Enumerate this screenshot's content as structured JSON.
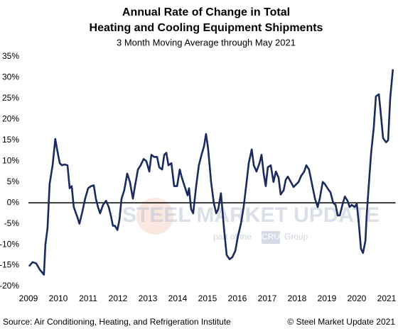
{
  "chart_data": {
    "type": "line",
    "title": [
      "Annual Rate of Change in Total",
      "Heating and Cooling Equipment Shipments"
    ],
    "subtitle": "3 Month Moving Average through May 2021",
    "source": "Source: Air Conditioning, Heating, and Refrigeration Institute",
    "copyright": "© Steel Market Update 2021",
    "watermark": [
      "STEEL MARKET UPDATE",
      "part of the",
      "CRU",
      "Group"
    ],
    "xlim": [
      2009,
      2021.3
    ],
    "xticks": [
      2009,
      2010,
      2011,
      2012,
      2013,
      2014,
      2015,
      2016,
      2017,
      2018,
      2019,
      2020,
      2021
    ],
    "ylim": [
      -20,
      35
    ],
    "yticks": [
      {
        "value": -20,
        "label": "-20%"
      },
      {
        "value": -15,
        "label": "-15%"
      },
      {
        "value": -10,
        "label": "-10%"
      },
      {
        "value": -5,
        "label": "-5%"
      },
      {
        "value": 0,
        "label": "0%"
      },
      {
        "value": 5,
        "label": "5%"
      },
      {
        "value": 10,
        "label": "10%"
      },
      {
        "value": 15,
        "label": "15%"
      },
      {
        "value": 20,
        "label": "20%"
      },
      {
        "value": 25,
        "label": "25%"
      },
      {
        "value": 30,
        "label": "30%"
      },
      {
        "value": 35,
        "label": "35%"
      }
    ],
    "grid": false,
    "zero_line": true,
    "series": [
      {
        "name": "3 Month Moving Average",
        "color": "#1b2b5e",
        "x": [
          2009.02,
          2009.14,
          2009.26,
          2009.38,
          2009.52,
          2009.57,
          2009.64,
          2009.71,
          2009.81,
          2009.9,
          2009.98,
          2010.05,
          2010.12,
          2010.21,
          2010.31,
          2010.38,
          2010.45,
          2010.52,
          2010.62,
          2010.71,
          2010.81,
          2010.9,
          2011.0,
          2011.1,
          2011.19,
          2011.26,
          2011.33,
          2011.4,
          2011.5,
          2011.6,
          2011.69,
          2011.76,
          2011.83,
          2011.9,
          2011.98,
          2012.05,
          2012.12,
          2012.21,
          2012.31,
          2012.4,
          2012.5,
          2012.57,
          2012.67,
          2012.76,
          2012.86,
          2012.95,
          2013.05,
          2013.12,
          2013.21,
          2013.31,
          2013.38,
          2013.48,
          2013.55,
          2013.62,
          2013.69,
          2013.79,
          2013.88,
          2013.98,
          2014.07,
          2014.14,
          2014.24,
          2014.33,
          2014.38,
          2014.45,
          2014.52,
          2014.62,
          2014.71,
          2014.81,
          2014.88,
          2014.95,
          2015.02,
          2015.12,
          2015.21,
          2015.29,
          2015.36,
          2015.45,
          2015.55,
          2015.64,
          2015.74,
          2015.83,
          2015.93,
          2016.02,
          2016.12,
          2016.21,
          2016.31,
          2016.38,
          2016.48,
          2016.55,
          2016.64,
          2016.74,
          2016.81,
          2016.88,
          2016.95,
          2017.02,
          2017.12,
          2017.21,
          2017.29,
          2017.38,
          2017.45,
          2017.55,
          2017.62,
          2017.69,
          2017.79,
          2017.88,
          2017.98,
          2018.05,
          2018.14,
          2018.24,
          2018.31,
          2018.4,
          2018.5,
          2018.6,
          2018.69,
          2018.76,
          2018.86,
          2018.93,
          2019.02,
          2019.12,
          2019.21,
          2019.29,
          2019.36,
          2019.43,
          2019.52,
          2019.6,
          2019.69,
          2019.76,
          2019.83,
          2019.93,
          2020.0,
          2020.07,
          2020.14,
          2020.21,
          2020.29,
          2020.33,
          2020.4,
          2020.48,
          2020.57,
          2020.64,
          2020.74,
          2020.81,
          2020.88,
          2020.98,
          2021.05,
          2021.12,
          2021.21
        ],
        "values": [
          -15.2,
          -14.2,
          -14.5,
          -16,
          -17.2,
          -10,
          -6,
          4.5,
          9,
          15.3,
          12,
          9.5,
          9,
          9.2,
          9,
          3.5,
          4,
          -1,
          -3,
          -5,
          -2,
          1,
          3.5,
          4,
          4.2,
          1,
          -1,
          -2.5,
          -0.5,
          0.5,
          -1,
          -3,
          -5.5,
          -5.5,
          -6.5,
          -4,
          1,
          3,
          7,
          5,
          1,
          4,
          8,
          9,
          10.5,
          10,
          7.5,
          11.5,
          11,
          11,
          8.5,
          8,
          11.5,
          12,
          9,
          9.5,
          4,
          4,
          8,
          6,
          3.8,
          1.8,
          3.5,
          -1.5,
          -2.5,
          4,
          9,
          11.8,
          13.5,
          16.5,
          13,
          5,
          0,
          -2.5,
          -1.5,
          2.3,
          -6,
          -12.5,
          -13.5,
          -13,
          -11.5,
          -8,
          -5,
          -1,
          5,
          9.5,
          12.8,
          9,
          7.5,
          9.5,
          11.5,
          7,
          4,
          8.5,
          9,
          5,
          7.5,
          6,
          2,
          3,
          5.5,
          6.3,
          5,
          3.8,
          4.5,
          5,
          6.5,
          7.5,
          9,
          8,
          4.5,
          1,
          -1,
          1,
          5,
          4.5,
          3.5,
          2.5,
          0,
          -0.5,
          -3,
          -3,
          -0.5,
          1.5,
          0.5,
          -1,
          -0.5,
          -1,
          -0.2,
          -5,
          -11,
          -12,
          -9,
          -3,
          4,
          12,
          18,
          25.5,
          26,
          21,
          15.5,
          14.5,
          15,
          25,
          32
        ]
      }
    ]
  }
}
